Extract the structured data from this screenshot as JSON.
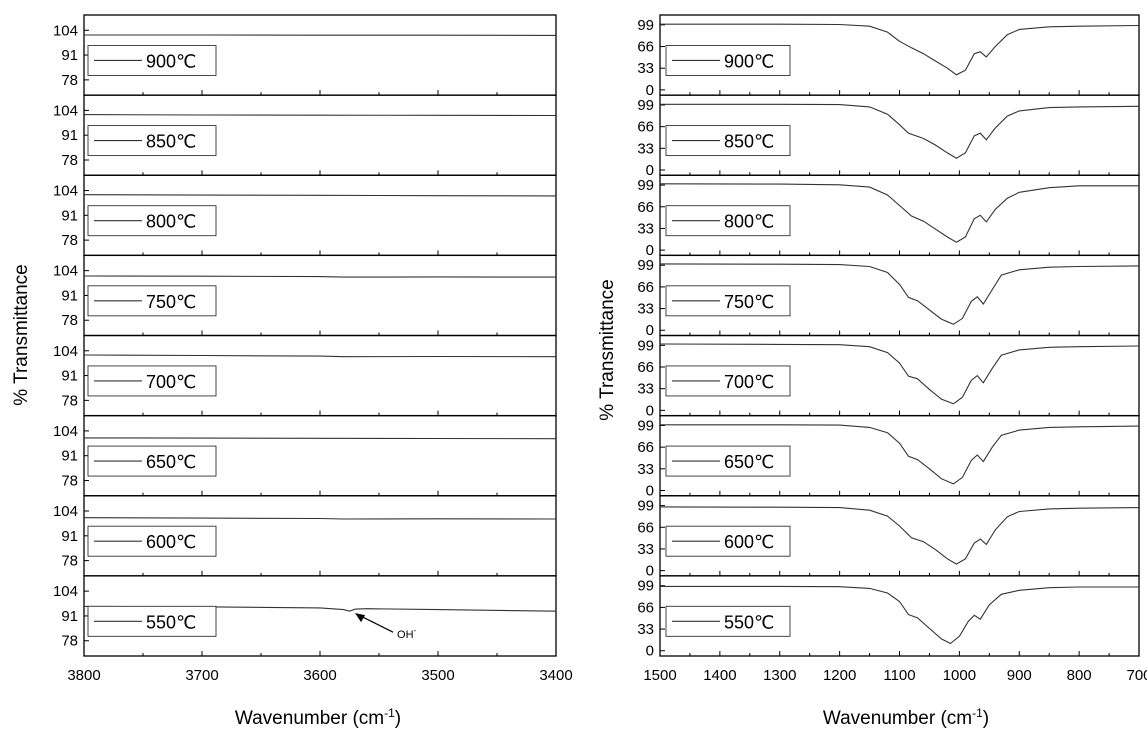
{
  "chart_data": [
    {
      "type": "line",
      "panel": "left",
      "xlabel": "Wavenumber (cm-1)",
      "xlabel_main": "Wavenumber (cm",
      "xlabel_sup": "-1",
      "xlabel_close": ")",
      "ylabel": "% Transmittance",
      "xlim": [
        3800,
        3400
      ],
      "x_ticks": [
        "3800",
        "3700",
        "3600",
        "3500",
        "3400"
      ],
      "ylim": [
        70,
        112
      ],
      "y_ticks": [
        "104",
        "91",
        "78"
      ],
      "grid": false,
      "annotation": {
        "text": "OH",
        "sup": "-",
        "x": 3572,
        "y": 93.5
      },
      "series": [
        {
          "name": "900℃",
          "x": [
            3800,
            3700,
            3600,
            3500,
            3400
          ],
          "y": [
            101.5,
            101.5,
            101.4,
            101.4,
            101.3
          ]
        },
        {
          "name": "850℃",
          "x": [
            3800,
            3700,
            3600,
            3500,
            3400
          ],
          "y": [
            101.8,
            101.6,
            101.5,
            101.4,
            101.3
          ]
        },
        {
          "name": "800℃",
          "x": [
            3800,
            3700,
            3600,
            3500,
            3400
          ],
          "y": [
            101.8,
            101.6,
            101.5,
            101.3,
            101.2
          ]
        },
        {
          "name": "750℃",
          "x": [
            3800,
            3700,
            3600,
            3580,
            3500,
            3400
          ],
          "y": [
            101.2,
            101.1,
            100.9,
            100.6,
            100.7,
            100.6
          ]
        },
        {
          "name": "700℃",
          "x": [
            3800,
            3700,
            3600,
            3580,
            3500,
            3400
          ],
          "y": [
            101.8,
            101.5,
            101.2,
            100.9,
            101.0,
            100.9
          ]
        },
        {
          "name": "650℃",
          "x": [
            3800,
            3700,
            3600,
            3500,
            3400
          ],
          "y": [
            100.3,
            100.2,
            100.1,
            100.0,
            99.9
          ]
        },
        {
          "name": "600℃",
          "x": [
            3800,
            3700,
            3600,
            3580,
            3500,
            3400
          ],
          "y": [
            100.5,
            100.3,
            100.1,
            99.8,
            99.9,
            99.8
          ]
        },
        {
          "name": "550℃",
          "x": [
            3800,
            3700,
            3600,
            3580,
            3575,
            3570,
            3560,
            3500,
            3400
          ],
          "y": [
            96.0,
            95.8,
            95.2,
            94.3,
            93.5,
            94.6,
            94.8,
            94.3,
            93.5
          ]
        }
      ]
    },
    {
      "type": "line",
      "panel": "right",
      "xlabel": "Wavenumber (cm-1)",
      "xlabel_main": "Wavenumber (cm",
      "xlabel_sup": "-1",
      "xlabel_close": ")",
      "ylabel": "% Transmittance",
      "xlim": [
        1500,
        700
      ],
      "x_ticks": [
        "1500",
        "1400",
        "1300",
        "1200",
        "1100",
        "1000",
        "900",
        "800",
        "700"
      ],
      "ylim": [
        -8,
        114
      ],
      "y_ticks": [
        "99",
        "66",
        "33",
        "0"
      ],
      "grid": false,
      "series": [
        {
          "name": "900℃",
          "x": [
            1500,
            1300,
            1200,
            1150,
            1120,
            1100,
            1080,
            1060,
            1040,
            1020,
            1005,
            990,
            975,
            965,
            955,
            940,
            920,
            900,
            850,
            800,
            700
          ],
          "y": [
            100,
            100,
            99.5,
            97,
            88,
            74,
            64,
            55,
            44,
            33,
            23,
            30,
            55,
            58,
            50,
            66,
            84,
            92,
            96,
            97,
            98
          ]
        },
        {
          "name": "850℃",
          "x": [
            1500,
            1300,
            1200,
            1150,
            1120,
            1100,
            1085,
            1060,
            1040,
            1020,
            1005,
            990,
            975,
            965,
            955,
            940,
            920,
            900,
            850,
            800,
            700
          ],
          "y": [
            100,
            100,
            99.5,
            96,
            85,
            69,
            56,
            48,
            38,
            26,
            18,
            26,
            52,
            56,
            46,
            64,
            82,
            90,
            95,
            96,
            97
          ]
        },
        {
          "name": "800℃",
          "x": [
            1500,
            1300,
            1200,
            1150,
            1120,
            1100,
            1080,
            1060,
            1040,
            1020,
            1005,
            990,
            975,
            965,
            955,
            940,
            920,
            900,
            850,
            800,
            700
          ],
          "y": [
            101,
            100.5,
            99.5,
            96,
            84,
            68,
            52,
            44,
            32,
            20,
            12,
            20,
            48,
            53,
            43,
            62,
            79,
            88,
            95,
            98,
            98
          ]
        },
        {
          "name": "750℃",
          "x": [
            1500,
            1300,
            1200,
            1150,
            1120,
            1100,
            1085,
            1070,
            1050,
            1030,
            1010,
            995,
            980,
            970,
            960,
            945,
            930,
            900,
            850,
            800,
            700
          ],
          "y": [
            101,
            100.5,
            100,
            97,
            88,
            70,
            50,
            45,
            31,
            17,
            9,
            18,
            44,
            51,
            40,
            62,
            84,
            92,
            96,
            97,
            98
          ]
        },
        {
          "name": "700℃",
          "x": [
            1500,
            1300,
            1200,
            1150,
            1120,
            1100,
            1085,
            1070,
            1050,
            1030,
            1010,
            995,
            980,
            970,
            960,
            945,
            930,
            900,
            850,
            800,
            700
          ],
          "y": [
            101,
            100.5,
            100,
            97,
            88,
            72,
            52,
            48,
            32,
            17,
            10,
            20,
            46,
            53,
            42,
            64,
            84,
            92,
            96,
            97,
            98
          ]
        },
        {
          "name": "650℃",
          "x": [
            1500,
            1300,
            1200,
            1150,
            1120,
            1100,
            1085,
            1070,
            1050,
            1030,
            1010,
            995,
            980,
            970,
            960,
            945,
            930,
            900,
            850,
            800,
            700
          ],
          "y": [
            100,
            100,
            99.5,
            96,
            88,
            72,
            52,
            47,
            33,
            18,
            10,
            20,
            46,
            54,
            44,
            66,
            84,
            92,
            96,
            97,
            98
          ]
        },
        {
          "name": "600℃",
          "x": [
            1500,
            1300,
            1200,
            1150,
            1120,
            1100,
            1080,
            1060,
            1040,
            1020,
            1005,
            990,
            975,
            965,
            955,
            940,
            920,
            900,
            850,
            800,
            700
          ],
          "y": [
            97,
            96.5,
            96,
            92,
            83,
            68,
            50,
            44,
            32,
            18,
            10,
            18,
            42,
            48,
            40,
            62,
            82,
            90,
            94,
            95,
            96
          ]
        },
        {
          "name": "550℃",
          "x": [
            1500,
            1300,
            1200,
            1150,
            1120,
            1100,
            1085,
            1070,
            1050,
            1030,
            1015,
            1000,
            985,
            975,
            965,
            950,
            930,
            900,
            850,
            800,
            700
          ],
          "y": [
            98,
            98,
            97.5,
            95,
            88,
            75,
            55,
            50,
            34,
            18,
            11,
            22,
            45,
            54,
            48,
            70,
            86,
            92,
            96,
            97,
            97
          ]
        }
      ]
    }
  ]
}
